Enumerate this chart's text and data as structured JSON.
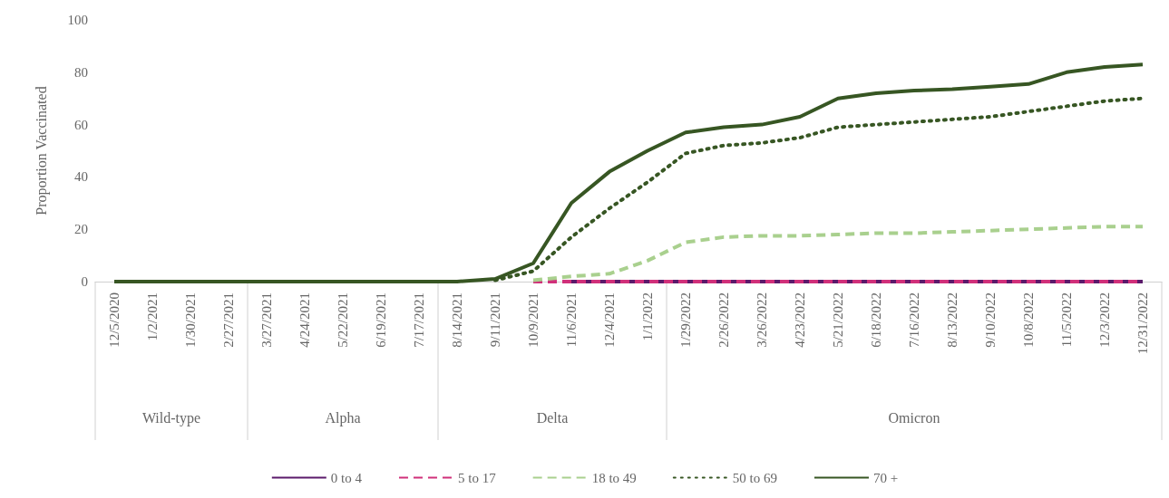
{
  "chart_data": {
    "type": "line",
    "ylabel": "Proportion Vaccinated",
    "categories": [
      "12/5/2020",
      "1/2/2021",
      "1/30/2021",
      "2/27/2021",
      "3/27/2021",
      "4/24/2021",
      "5/22/2021",
      "6/19/2021",
      "7/17/2021",
      "8/14/2021",
      "9/11/2021",
      "10/9/2021",
      "11/6/2021",
      "12/4/2021",
      "1/1/2022",
      "1/29/2022",
      "2/26/2022",
      "3/26/2022",
      "4/23/2022",
      "5/21/2022",
      "6/18/2022",
      "7/16/2022",
      "8/13/2022",
      "9/10/2022",
      "10/8/2022",
      "11/5/2022",
      "12/3/2022",
      "12/31/2022"
    ],
    "series": [
      {
        "name": "0 to 4",
        "color": "#5b1a6b",
        "line_style": "solid",
        "values": [
          null,
          null,
          null,
          null,
          null,
          null,
          null,
          null,
          null,
          null,
          null,
          null,
          0,
          0,
          0,
          0,
          0,
          0,
          0,
          0,
          0,
          0,
          0,
          0,
          0,
          0,
          0,
          0
        ]
      },
      {
        "name": "5 to 17",
        "color": "#d0307a",
        "line_style": "dashed",
        "values": [
          null,
          null,
          null,
          null,
          null,
          null,
          null,
          null,
          null,
          null,
          null,
          0,
          0,
          0,
          0,
          0,
          0,
          0,
          0,
          0,
          0,
          0,
          0,
          0,
          0,
          0,
          0,
          0
        ]
      },
      {
        "name": "18 to 49",
        "color": "#a9d08e",
        "line_style": "dashed",
        "values": [
          null,
          null,
          null,
          null,
          null,
          null,
          null,
          null,
          null,
          null,
          null,
          0.5,
          2,
          3,
          8,
          15,
          17,
          17.5,
          17.5,
          18,
          18.5,
          18.5,
          19,
          19.5,
          20,
          20.5,
          21,
          21
        ]
      },
      {
        "name": "50 to 69",
        "color": "#375623",
        "line_style": "dotted",
        "values": [
          null,
          null,
          null,
          null,
          null,
          null,
          null,
          null,
          null,
          null,
          0.5,
          4,
          17,
          28,
          38,
          49,
          52,
          53,
          55,
          59,
          60,
          61,
          62,
          63,
          65,
          67,
          69,
          70
        ]
      },
      {
        "name": "70 +",
        "color": "#375623",
        "line_style": "solid",
        "values": [
          0,
          0,
          0,
          0,
          0,
          0,
          0,
          0,
          0,
          0,
          1,
          7,
          30,
          42,
          50,
          57,
          59,
          60,
          63,
          70,
          72,
          73,
          73.5,
          74.5,
          75.5,
          80,
          82,
          83
        ]
      }
    ],
    "ylim": [
      0,
      100
    ],
    "yticks": [
      0,
      20,
      40,
      60,
      80,
      100
    ],
    "grid": false,
    "legend": "bottom",
    "marker": "none",
    "annotations": [
      "Wild-type",
      "Alpha",
      "Delta",
      "Omicron"
    ]
  }
}
